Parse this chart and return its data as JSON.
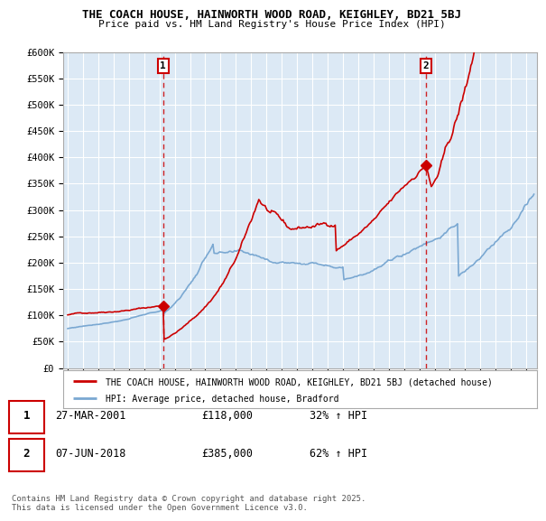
{
  "title": "THE COACH HOUSE, HAINWORTH WOOD ROAD, KEIGHLEY, BD21 5BJ",
  "subtitle": "Price paid vs. HM Land Registry's House Price Index (HPI)",
  "ylim": [
    0,
    600000
  ],
  "yticks": [
    0,
    50000,
    100000,
    150000,
    200000,
    250000,
    300000,
    350000,
    400000,
    450000,
    500000,
    550000,
    600000
  ],
  "ytick_labels": [
    "£0",
    "£50K",
    "£100K",
    "£150K",
    "£200K",
    "£250K",
    "£300K",
    "£350K",
    "£400K",
    "£450K",
    "£500K",
    "£550K",
    "£600K"
  ],
  "xlim_start": 1994.7,
  "xlim_end": 2025.7,
  "red_color": "#cc0000",
  "blue_color": "#7aa8d2",
  "plot_bg_color": "#dce9f5",
  "transaction1": {
    "date_x": 2001.24,
    "price": 118000,
    "label": "1",
    "date_str": "27-MAR-2001",
    "price_str": "£118,000",
    "hpi_str": "32% ↑ HPI"
  },
  "transaction2": {
    "date_x": 2018.44,
    "price": 385000,
    "label": "2",
    "date_str": "07-JUN-2018",
    "price_str": "£385,000",
    "hpi_str": "62% ↑ HPI"
  },
  "legend_red_label": "THE COACH HOUSE, HAINWORTH WOOD ROAD, KEIGHLEY, BD21 5BJ (detached house)",
  "legend_blue_label": "HPI: Average price, detached house, Bradford",
  "footer": "Contains HM Land Registry data © Crown copyright and database right 2025.\nThis data is licensed under the Open Government Licence v3.0.",
  "background_color": "#ffffff",
  "grid_color": "#ffffff"
}
